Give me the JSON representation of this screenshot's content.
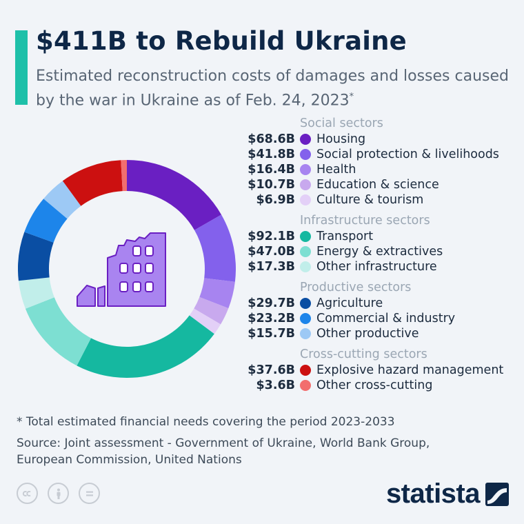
{
  "title": "$411B to Rebuild Ukraine",
  "subtitle": "Estimated reconstruction costs of damages and losses caused by the war in Ukraine as of Feb. 24, 2023",
  "subtitle_marker": "*",
  "footnote": "* Total estimated financial needs covering the period 2023-2033",
  "source": "Source: Joint assessment - Government of Ukraine, World Bank Group, European Commission, United Nations",
  "brand": "statista",
  "colors": {
    "accent": "#1ec0a9",
    "title": "#0e2747",
    "group_label": "#9aa6b3"
  },
  "icons": {
    "center": "damaged-building-icon",
    "license": [
      "cc-icon",
      "attribution-icon",
      "no-derivatives-icon"
    ],
    "brand": "statista-logo-icon"
  },
  "chart_data": {
    "type": "donut",
    "unit": "billion USD",
    "total": 411,
    "groups": [
      {
        "name": "Social sectors",
        "items": [
          {
            "label": "Housing",
            "value": 68.6,
            "display": "$68.6B",
            "color": "#6a1fc2"
          },
          {
            "label": "Social protection & livelihoods",
            "value": 41.8,
            "display": "$41.8B",
            "color": "#8361ec"
          },
          {
            "label": "Health",
            "value": 16.4,
            "display": "$16.4B",
            "color": "#a784f0"
          },
          {
            "label": "Education & science",
            "value": 10.7,
            "display": "$10.7B",
            "color": "#c8a9ee"
          },
          {
            "label": "Culture & tourism",
            "value": 6.9,
            "display": "$6.9B",
            "color": "#e3d0f7"
          }
        ]
      },
      {
        "name": "Infrastructure sectors",
        "items": [
          {
            "label": "Transport",
            "value": 92.1,
            "display": "$92.1B",
            "color": "#15b8a0"
          },
          {
            "label": "Energy & extractives",
            "value": 47.0,
            "display": "$47.0B",
            "color": "#7ddfd2"
          },
          {
            "label": "Other infrastructure",
            "value": 17.3,
            "display": "$17.3B",
            "color": "#c1eeea"
          }
        ]
      },
      {
        "name": "Productive sectors",
        "items": [
          {
            "label": "Agriculture",
            "value": 29.7,
            "display": "$29.7B",
            "color": "#0a4ea3"
          },
          {
            "label": "Commercial & industry",
            "value": 23.2,
            "display": "$23.2B",
            "color": "#1d85ea"
          },
          {
            "label": "Other productive",
            "value": 15.7,
            "display": "$15.7B",
            "color": "#9dc9f5"
          }
        ]
      },
      {
        "name": "Cross-cutting sectors",
        "items": [
          {
            "label": "Explosive hazard management",
            "value": 37.6,
            "display": "$37.6B",
            "color": "#cc1010"
          },
          {
            "label": "Other cross-cutting",
            "value": 3.6,
            "display": "$3.6B",
            "color": "#f26e6e"
          }
        ]
      }
    ],
    "slice_order": [
      "Housing",
      "Social protection & livelihoods",
      "Health",
      "Education & science",
      "Culture & tourism",
      "Transport",
      "Energy & extractives",
      "Other infrastructure",
      "Agriculture",
      "Commercial & industry",
      "Other productive",
      "Explosive hazard management",
      "Other cross-cutting"
    ],
    "start_angle_deg": 0,
    "direction": "clockwise"
  }
}
